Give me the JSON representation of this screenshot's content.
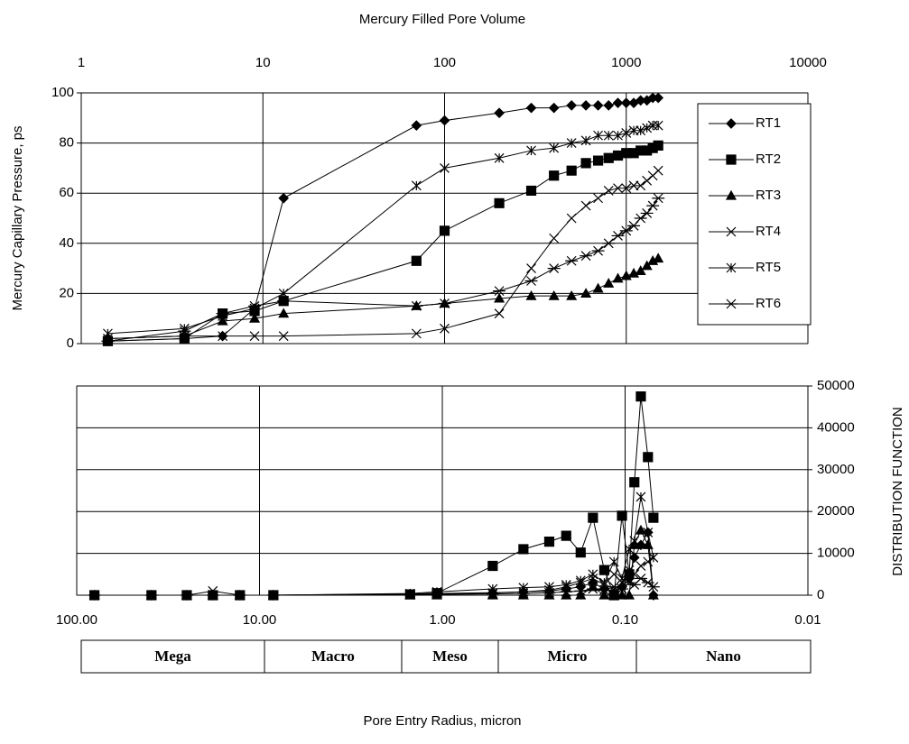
{
  "chart_data": [
    {
      "type": "line",
      "title": "Mercury Filled Pore Volume",
      "y_label": "Mercury Capillary Pressure, ps",
      "x": [
        1.4,
        3.7,
        6,
        9,
        13,
        70,
        100,
        200,
        300,
        400,
        500,
        600,
        700,
        800,
        900,
        1000,
        1100,
        1200,
        1300,
        1400,
        1500
      ],
      "xlim": [
        1,
        10000
      ],
      "xticks": [
        1,
        10,
        100,
        1000,
        10000
      ],
      "xscale": "log",
      "ylim": [
        0,
        100
      ],
      "yticks": [
        0,
        20,
        40,
        60,
        80,
        100
      ],
      "grid": true,
      "legend": "right",
      "series": [
        {
          "name": "RT1",
          "marker": "diamond",
          "color": "#000000",
          "values": [
            1,
            2,
            3,
            14,
            58,
            87,
            89,
            92,
            94,
            94,
            95,
            95,
            95,
            95,
            96,
            96,
            96,
            97,
            97,
            98,
            98
          ]
        },
        {
          "name": "RT2",
          "marker": "square",
          "color": "#000000",
          "values": [
            1,
            2,
            12,
            13,
            17,
            33,
            45,
            56,
            61,
            67,
            69,
            72,
            73,
            74,
            75,
            76,
            76,
            77,
            77,
            78,
            79
          ]
        },
        {
          "name": "RT3",
          "marker": "triangle",
          "color": "#000000",
          "values": [
            2,
            3,
            9,
            10,
            12,
            15,
            16,
            18,
            19,
            19,
            19,
            20,
            22,
            24,
            26,
            27,
            28,
            29,
            31,
            33,
            34
          ]
        },
        {
          "name": "RT4",
          "marker": "x",
          "color": "#000000",
          "values": [
            2,
            3,
            3,
            3,
            3,
            4,
            6,
            12,
            30,
            42,
            50,
            55,
            58,
            61,
            62,
            62,
            63,
            63,
            65,
            67,
            69
          ]
        },
        {
          "name": "RT5",
          "marker": "star",
          "color": "#000000",
          "values": [
            4,
            6,
            11,
            14,
            20,
            63,
            70,
            74,
            77,
            78,
            80,
            81,
            83,
            83,
            83,
            84,
            85,
            85,
            86,
            87,
            87
          ]
        },
        {
          "name": "RT6",
          "marker": "cross",
          "color": "#000000",
          "values": [
            1,
            5,
            12,
            15,
            17,
            15,
            16,
            21,
            25,
            30,
            33,
            35,
            37,
            40,
            43,
            45,
            47,
            50,
            52,
            55,
            58
          ]
        }
      ]
    },
    {
      "type": "line",
      "x_label": "Pore Entry Radius, micron",
      "y_label": "DISTRIBUTION FUNCTION",
      "x": [
        80,
        39,
        25,
        18,
        12.8,
        8.4,
        1.5,
        1.07,
        0.53,
        0.36,
        0.26,
        0.21,
        0.175,
        0.15,
        0.13,
        0.115,
        0.104,
        0.095,
        0.089,
        0.082,
        0.075,
        0.07
      ],
      "xlim": [
        100,
        0.01
      ],
      "xscale": "log",
      "xticks": [
        {
          "value": 100,
          "label": "100.00"
        },
        {
          "value": 10,
          "label": "10.00"
        },
        {
          "value": 1,
          "label": "1.00"
        },
        {
          "value": 0.1,
          "label": "0.10"
        },
        {
          "value": 0.01,
          "label": "0.01"
        }
      ],
      "y2lim": [
        0,
        50000
      ],
      "y2ticks": [
        0,
        10000,
        20000,
        30000,
        40000,
        50000
      ],
      "grid": true,
      "series": [
        {
          "marker": "diamond",
          "color": "#000000",
          "axis": "y2",
          "values": [
            0,
            0,
            0,
            0,
            0,
            0,
            300,
            400,
            600,
            800,
            1000,
            1500,
            2000,
            3000,
            1500,
            500,
            2000,
            4000,
            9000,
            12000,
            15000,
            0
          ]
        },
        {
          "marker": "square",
          "color": "#000000",
          "axis": "y2",
          "values": [
            0,
            0,
            0,
            0,
            0,
            0,
            200,
            500,
            7000,
            11000,
            12800,
            14200,
            10200,
            18500,
            6000,
            0,
            19000,
            5000,
            27000,
            47500,
            33000,
            18500
          ]
        },
        {
          "marker": "triangle",
          "color": "#000000",
          "axis": "y2",
          "values": [
            0,
            0,
            0,
            0,
            0,
            0,
            0,
            0,
            0,
            0,
            0,
            0,
            0,
            2000,
            0,
            0,
            0,
            0,
            12000,
            15500,
            12000,
            0
          ]
        },
        {
          "marker": "x",
          "color": "#000000",
          "axis": "y2",
          "values": [
            0,
            0,
            0,
            1000,
            0,
            0,
            200,
            300,
            500,
            800,
            1200,
            2000,
            3000,
            4000,
            2500,
            5000,
            3000,
            6000,
            5000,
            7000,
            8000,
            9000
          ]
        },
        {
          "marker": "star",
          "color": "#000000",
          "axis": "y2",
          "values": [
            0,
            0,
            0,
            0,
            0,
            0,
            400,
            800,
            1500,
            1800,
            2000,
            2500,
            3500,
            5000,
            3000,
            8000,
            4000,
            11000,
            13000,
            23500,
            15000,
            9000
          ]
        },
        {
          "marker": "cross",
          "color": "#000000",
          "axis": "y2",
          "values": [
            0,
            0,
            0,
            0,
            0,
            0,
            100,
            200,
            300,
            400,
            600,
            800,
            1000,
            1500,
            1200,
            2000,
            1500,
            3000,
            2500,
            4000,
            3000,
            2000
          ]
        }
      ]
    }
  ],
  "pore_classes": [
    "Mega",
    "Macro",
    "Meso",
    "Micro",
    "Nano"
  ]
}
